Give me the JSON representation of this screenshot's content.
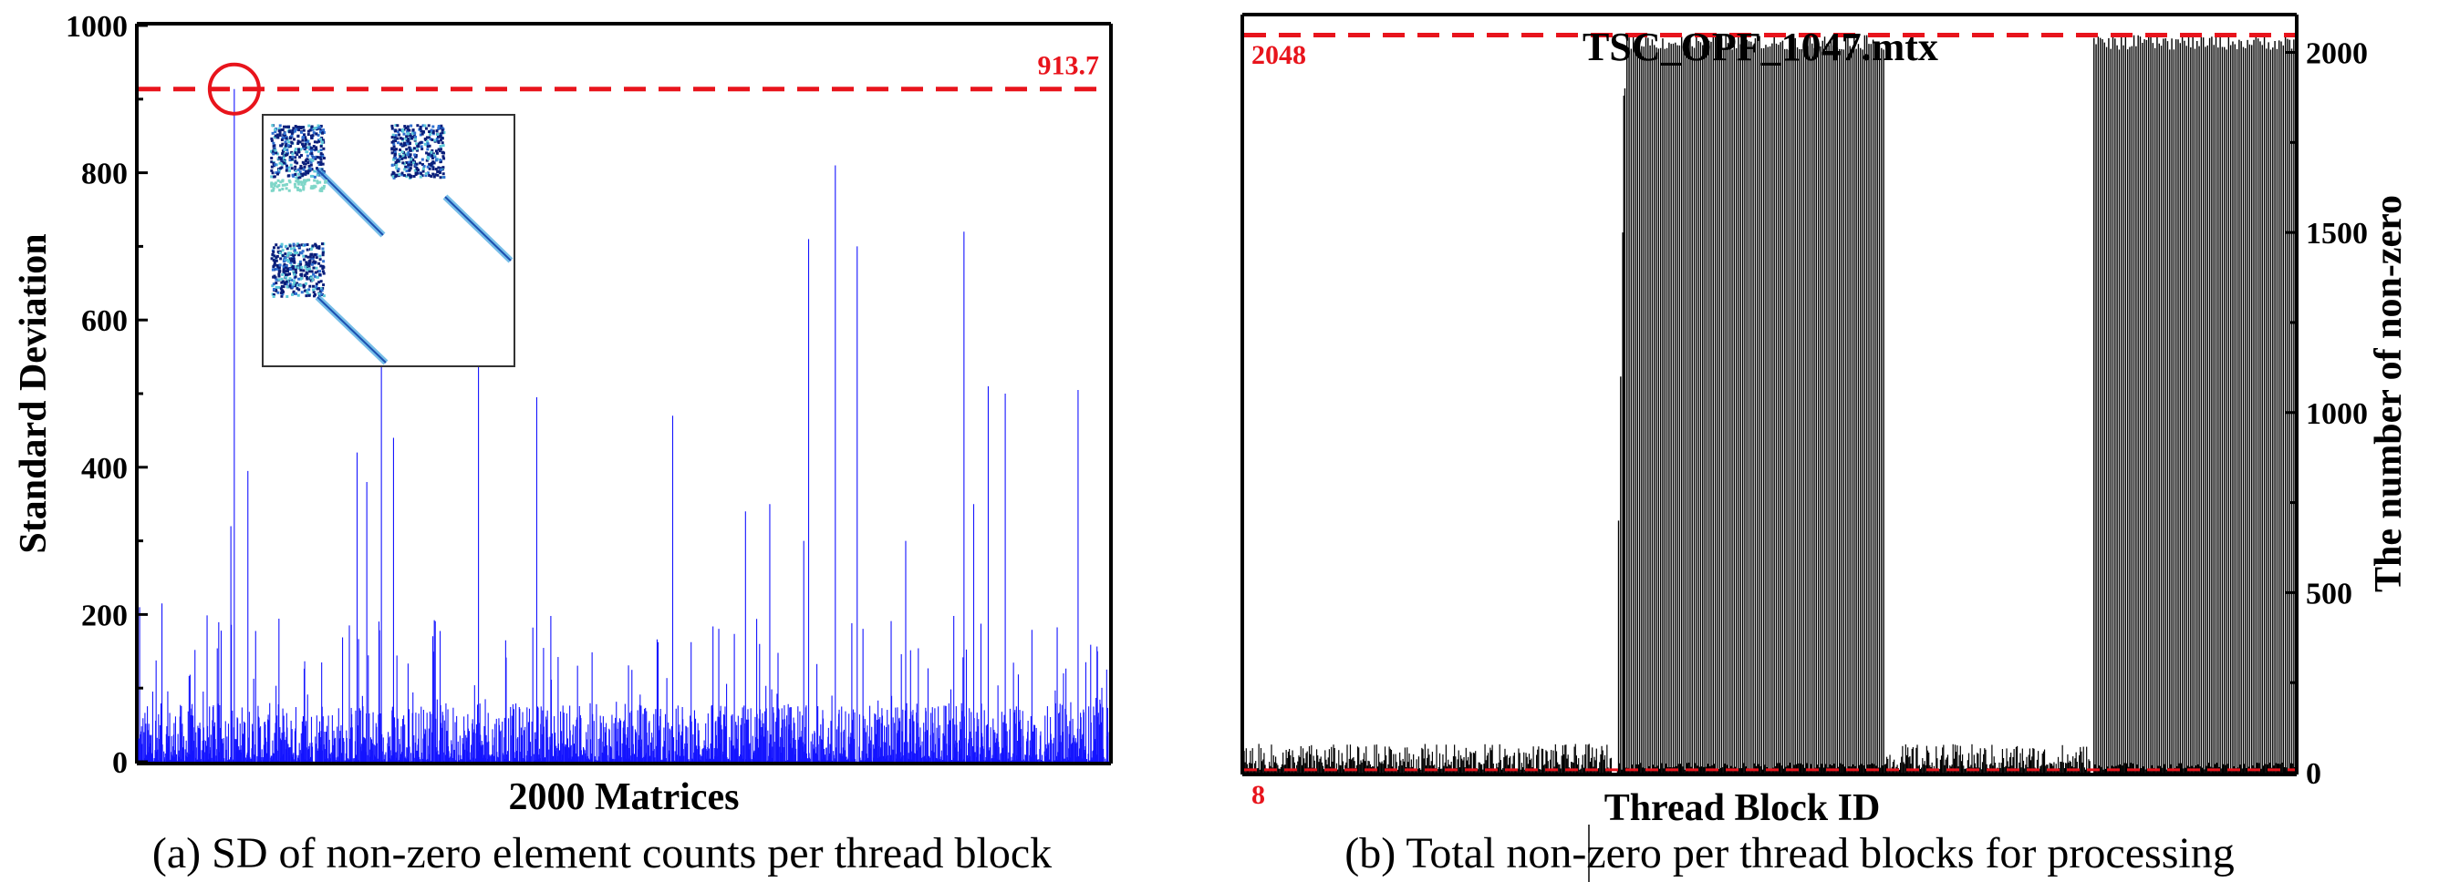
{
  "chart_data": [
    {
      "type": "bar",
      "title": "",
      "xlabel": "2000 Matrices",
      "ylabel": "Standard Deviation",
      "caption": "(a) SD of non-zero element counts per thread block",
      "ylim": [
        0,
        1000
      ],
      "yticks": [
        "0",
        "200",
        "400",
        "600",
        "800",
        "1000"
      ],
      "grid": false,
      "series_color": "#1414ff",
      "reference_line": {
        "value": 913.7,
        "label": "913.7",
        "color": "#e8141c"
      },
      "n_points": 2000,
      "highlighted_peak": {
        "index": 197,
        "value": 913.7
      },
      "notable_peaks": [
        {
          "index": 2,
          "value": 210
        },
        {
          "index": 48,
          "value": 215
        },
        {
          "index": 190,
          "value": 320
        },
        {
          "index": 197,
          "value": 913.7
        },
        {
          "index": 225,
          "value": 395
        },
        {
          "index": 450,
          "value": 420
        },
        {
          "index": 470,
          "value": 380
        },
        {
          "index": 500,
          "value": 860
        },
        {
          "index": 525,
          "value": 440
        },
        {
          "index": 700,
          "value": 820
        },
        {
          "index": 820,
          "value": 495
        },
        {
          "index": 1100,
          "value": 470
        },
        {
          "index": 1250,
          "value": 340
        },
        {
          "index": 1300,
          "value": 350
        },
        {
          "index": 1370,
          "value": 300
        },
        {
          "index": 1380,
          "value": 710
        },
        {
          "index": 1435,
          "value": 810
        },
        {
          "index": 1480,
          "value": 700
        },
        {
          "index": 1580,
          "value": 300
        },
        {
          "index": 1700,
          "value": 720
        },
        {
          "index": 1720,
          "value": 350
        },
        {
          "index": 1750,
          "value": 510
        },
        {
          "index": 1785,
          "value": 500
        },
        {
          "index": 1935,
          "value": 505
        },
        {
          "index": 1975,
          "value": 150
        }
      ],
      "baseline_range": [
        0,
        80
      ],
      "inset": {
        "description_icon": "sparse-matrix-pattern-thumbnail"
      }
    },
    {
      "type": "bar",
      "title": "TSC_OPF_1047.mtx",
      "xlabel": "Thread Block ID",
      "ylabel": "The number of non-zero",
      "caption": "(b) Total non-zero per thread blocks for processing",
      "ylim": [
        0,
        2100
      ],
      "yticks": [
        "0",
        "500",
        "1000",
        "1500",
        "2000"
      ],
      "y_axis_side": "right",
      "grid": false,
      "series_color": "#000000",
      "reference_line": {
        "value": 2048,
        "label": "2048",
        "color": "#e8141c"
      },
      "lower_reference": {
        "value": 8,
        "label": "8",
        "color": "#e8141c"
      },
      "n_points": 1000,
      "segments": [
        {
          "from": 0,
          "to": 350,
          "level": 30
        },
        {
          "from": 355,
          "to": 610,
          "level": 2048
        },
        {
          "from": 610,
          "to": 805,
          "level": 30
        },
        {
          "from": 808,
          "to": 1000,
          "level": 2048
        }
      ]
    }
  ]
}
